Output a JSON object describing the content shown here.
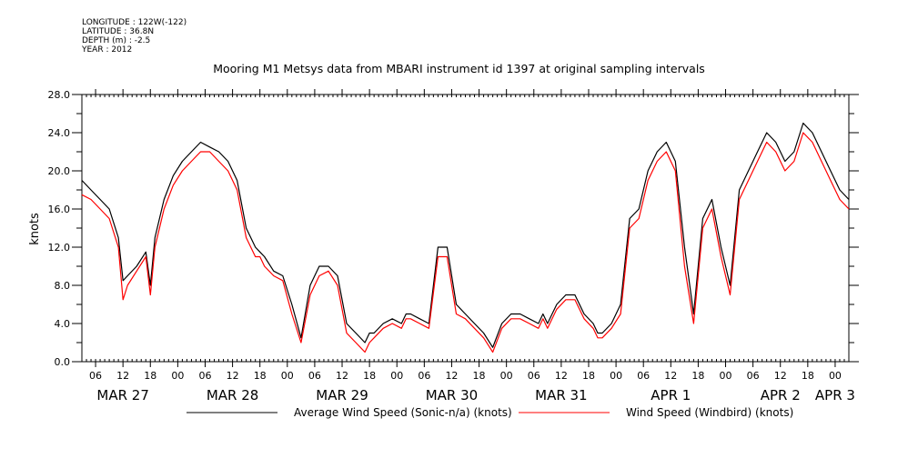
{
  "meta": [
    "LONGITUDE : 122W(-122)",
    "LATITUDE : 36.8N",
    "DEPTH (m) : -2.5",
    "YEAR : 2012"
  ],
  "chart_data": {
    "type": "line",
    "title": "Mooring M1 Metsys data from MBARI instrument id 1397 at original sampling intervals",
    "ylabel": "knots",
    "xlabel": "",
    "ylim": [
      0,
      28
    ],
    "yticks": [
      "0.0",
      "4.0",
      "8.0",
      "12.0",
      "16.0",
      "20.0",
      "24.0",
      "28.0"
    ],
    "xlim_hours": [
      3,
      171
    ],
    "hour_ticks": [
      {
        "h": 6,
        "label": "06"
      },
      {
        "h": 12,
        "label": "12"
      },
      {
        "h": 18,
        "label": "18"
      },
      {
        "h": 24,
        "label": "00"
      },
      {
        "h": 30,
        "label": "06"
      },
      {
        "h": 36,
        "label": "12"
      },
      {
        "h": 42,
        "label": "18"
      },
      {
        "h": 48,
        "label": "00"
      },
      {
        "h": 54,
        "label": "06"
      },
      {
        "h": 60,
        "label": "12"
      },
      {
        "h": 66,
        "label": "18"
      },
      {
        "h": 72,
        "label": "00"
      },
      {
        "h": 78,
        "label": "06"
      },
      {
        "h": 84,
        "label": "12"
      },
      {
        "h": 90,
        "label": "18"
      },
      {
        "h": 96,
        "label": "00"
      },
      {
        "h": 102,
        "label": "06"
      },
      {
        "h": 108,
        "label": "12"
      },
      {
        "h": 114,
        "label": "18"
      },
      {
        "h": 120,
        "label": "00"
      },
      {
        "h": 126,
        "label": "06"
      },
      {
        "h": 132,
        "label": "12"
      },
      {
        "h": 138,
        "label": "18"
      },
      {
        "h": 144,
        "label": "00"
      },
      {
        "h": 150,
        "label": "06"
      },
      {
        "h": 156,
        "label": "12"
      },
      {
        "h": 162,
        "label": "18"
      },
      {
        "h": 168,
        "label": "00"
      }
    ],
    "day_labels": [
      {
        "h": 12,
        "label": "MAR 27"
      },
      {
        "h": 36,
        "label": "MAR 28"
      },
      {
        "h": 60,
        "label": "MAR 29"
      },
      {
        "h": 84,
        "label": "MAR 30"
      },
      {
        "h": 108,
        "label": "MAR 31"
      },
      {
        "h": 132,
        "label": "APR  1"
      },
      {
        "h": 156,
        "label": "APR  2"
      },
      {
        "h": 168,
        "label": "APR  3"
      }
    ],
    "x_hours": [
      3,
      5,
      7,
      9,
      11,
      12,
      13,
      15,
      17,
      18,
      19,
      21,
      23,
      25,
      27,
      29,
      31,
      33,
      35,
      37,
      39,
      41,
      42,
      43,
      45,
      47,
      49,
      51,
      53,
      55,
      57,
      59,
      61,
      63,
      65,
      66,
      67,
      69,
      71,
      73,
      74,
      75,
      77,
      79,
      81,
      83,
      85,
      87,
      89,
      91,
      93,
      95,
      97,
      99,
      101,
      103,
      104,
      105,
      107,
      109,
      111,
      113,
      115,
      116,
      117,
      119,
      121,
      123,
      125,
      127,
      129,
      131,
      133,
      135,
      137,
      139,
      141,
      143,
      145,
      147,
      149,
      151,
      153,
      155,
      157,
      159,
      161,
      163,
      165,
      167,
      169,
      171
    ],
    "series": [
      {
        "name": "Average Wind Speed (Sonic-n/a) (knots)",
        "color": "#000000",
        "values": [
          19,
          18,
          17,
          16,
          13,
          8.5,
          9,
          10,
          11.5,
          8,
          13,
          17,
          19.5,
          21,
          22,
          23,
          22.5,
          22,
          21,
          19,
          14,
          12,
          11.5,
          11,
          9.5,
          9,
          6,
          2.5,
          8,
          10,
          10,
          9,
          4,
          3,
          2,
          3,
          3,
          4,
          4.5,
          4,
          5,
          5,
          4.5,
          4,
          12,
          12,
          6,
          5,
          4,
          3,
          1.5,
          4,
          5,
          5,
          4.5,
          4,
          5,
          4,
          6,
          7,
          7,
          5,
          4,
          3,
          3,
          4,
          6,
          15,
          16,
          20,
          22,
          23,
          21,
          12,
          5,
          15,
          17,
          12,
          8,
          18,
          20,
          22,
          24,
          23,
          21,
          22,
          25,
          24,
          22,
          20,
          18,
          17
        ]
      },
      {
        "name": "Wind Speed (Windbird) (knots)",
        "color": "#ff0000",
        "values": [
          17.5,
          17,
          16,
          15,
          12,
          6.5,
          8,
          9.5,
          11,
          7,
          12,
          16,
          18.5,
          20,
          21,
          22,
          22,
          21,
          20,
          18,
          13,
          11,
          11,
          10,
          9,
          8.5,
          5,
          2,
          7,
          9,
          9.5,
          8,
          3,
          2,
          1,
          2,
          2.5,
          3.5,
          4,
          3.5,
          4.5,
          4.5,
          4,
          3.5,
          11,
          11,
          5,
          4.5,
          3.5,
          2.5,
          1,
          3.5,
          4.5,
          4.5,
          4,
          3.5,
          4.5,
          3.5,
          5.5,
          6.5,
          6.5,
          4.5,
          3.5,
          2.5,
          2.5,
          3.5,
          5,
          14,
          15,
          19,
          21,
          22,
          20,
          10,
          4,
          14,
          16,
          11,
          7,
          17,
          19,
          21,
          23,
          22,
          20,
          21,
          24,
          23,
          21,
          19,
          17,
          16
        ]
      }
    ],
    "legend": "bottom"
  }
}
